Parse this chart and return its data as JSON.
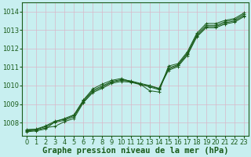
{
  "title": "Graphe pression niveau de la mer (hPa)",
  "bg_color": "#c8eff0",
  "line_color": "#1a5c1a",
  "grid_color": "#d8b8c8",
  "x_ticks": [
    0,
    1,
    2,
    3,
    4,
    5,
    6,
    7,
    8,
    9,
    10,
    11,
    12,
    13,
    14,
    15,
    16,
    17,
    18,
    19,
    20,
    21,
    22,
    23
  ],
  "y_ticks": [
    1008,
    1009,
    1010,
    1011,
    1012,
    1013,
    1014
  ],
  "ylim": [
    1007.3,
    1014.5
  ],
  "xlim": [
    -0.5,
    23.5
  ],
  "series": [
    [
      1007.55,
      1007.58,
      1007.72,
      1007.8,
      1008.05,
      1008.22,
      1009.08,
      1009.62,
      1009.85,
      1010.12,
      1010.22,
      1010.18,
      1010.05,
      1009.98,
      1009.82,
      1010.82,
      1011.02,
      1011.62,
      1012.62,
      1013.12,
      1013.12,
      1013.32,
      1013.42,
      1013.72
    ],
    [
      1007.6,
      1007.62,
      1007.78,
      1008.02,
      1008.12,
      1008.32,
      1009.12,
      1009.68,
      1009.92,
      1010.18,
      1010.28,
      1010.22,
      1010.08,
      1009.92,
      1009.78,
      1010.88,
      1011.08,
      1011.68,
      1012.68,
      1013.18,
      1013.18,
      1013.38,
      1013.48,
      1013.78
    ],
    [
      1007.62,
      1007.65,
      1007.82,
      1008.08,
      1008.18,
      1008.38,
      1009.18,
      1009.75,
      1009.98,
      1010.22,
      1010.32,
      1010.25,
      1010.12,
      1010.0,
      1009.85,
      1010.95,
      1011.12,
      1011.75,
      1012.75,
      1013.25,
      1013.25,
      1013.45,
      1013.55,
      1013.85
    ],
    [
      1007.5,
      1007.55,
      1007.65,
      1008.05,
      1008.22,
      1008.42,
      1009.22,
      1009.82,
      1010.08,
      1010.28,
      1010.38,
      1010.22,
      1010.08,
      1009.72,
      1009.65,
      1011.05,
      1011.18,
      1011.82,
      1012.82,
      1013.35,
      1013.35,
      1013.52,
      1013.62,
      1013.92
    ]
  ],
  "title_color": "#1a5c1a",
  "title_fontsize": 7.5,
  "tick_fontsize": 6.0,
  "spine_color": "#1a5c1a",
  "marker": "+"
}
